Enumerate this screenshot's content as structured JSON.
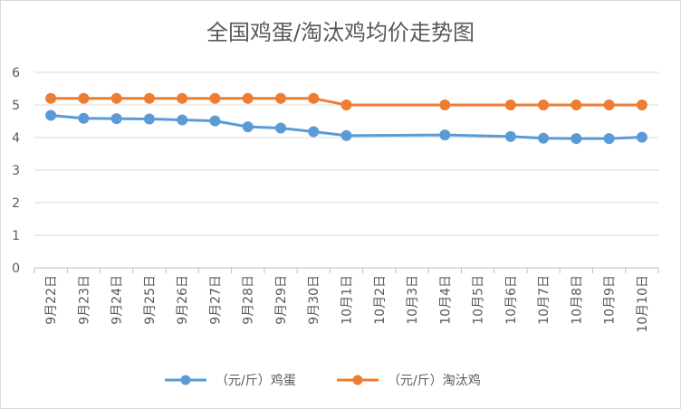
{
  "chart_data": {
    "type": "line",
    "title": "全国鸡蛋/淘汰鸡均价走势图",
    "categories": [
      "9月22日",
      "9月23日",
      "9月24日",
      "9月25日",
      "9月26日",
      "9月27日",
      "9月28日",
      "9月29日",
      "9月30日",
      "10月1日",
      "10月2日",
      "10月3日",
      "10月4日",
      "10月5日",
      "10月6日",
      "10月7日",
      "10月8日",
      "10月9日",
      "10月10日"
    ],
    "ylim": [
      0,
      6
    ],
    "yticks": [
      0,
      1,
      2,
      3,
      4,
      5,
      6
    ],
    "grid": true,
    "legend_position": "bottom",
    "series": [
      {
        "name": "（元/斤）鸡蛋",
        "color": "#5b9bd5",
        "values": [
          4.68,
          4.59,
          4.58,
          4.57,
          4.54,
          4.51,
          4.33,
          4.29,
          4.18,
          4.06,
          null,
          null,
          4.08,
          null,
          4.03,
          3.98,
          3.97,
          3.97,
          4.01
        ]
      },
      {
        "name": "（元/斤）淘汰鸡",
        "color": "#ed7d31",
        "values": [
          5.2,
          5.2,
          5.2,
          5.2,
          5.2,
          5.2,
          5.2,
          5.2,
          5.2,
          5.0,
          null,
          null,
          5.0,
          null,
          5.0,
          5.0,
          5.0,
          5.0,
          5.0
        ]
      }
    ]
  }
}
